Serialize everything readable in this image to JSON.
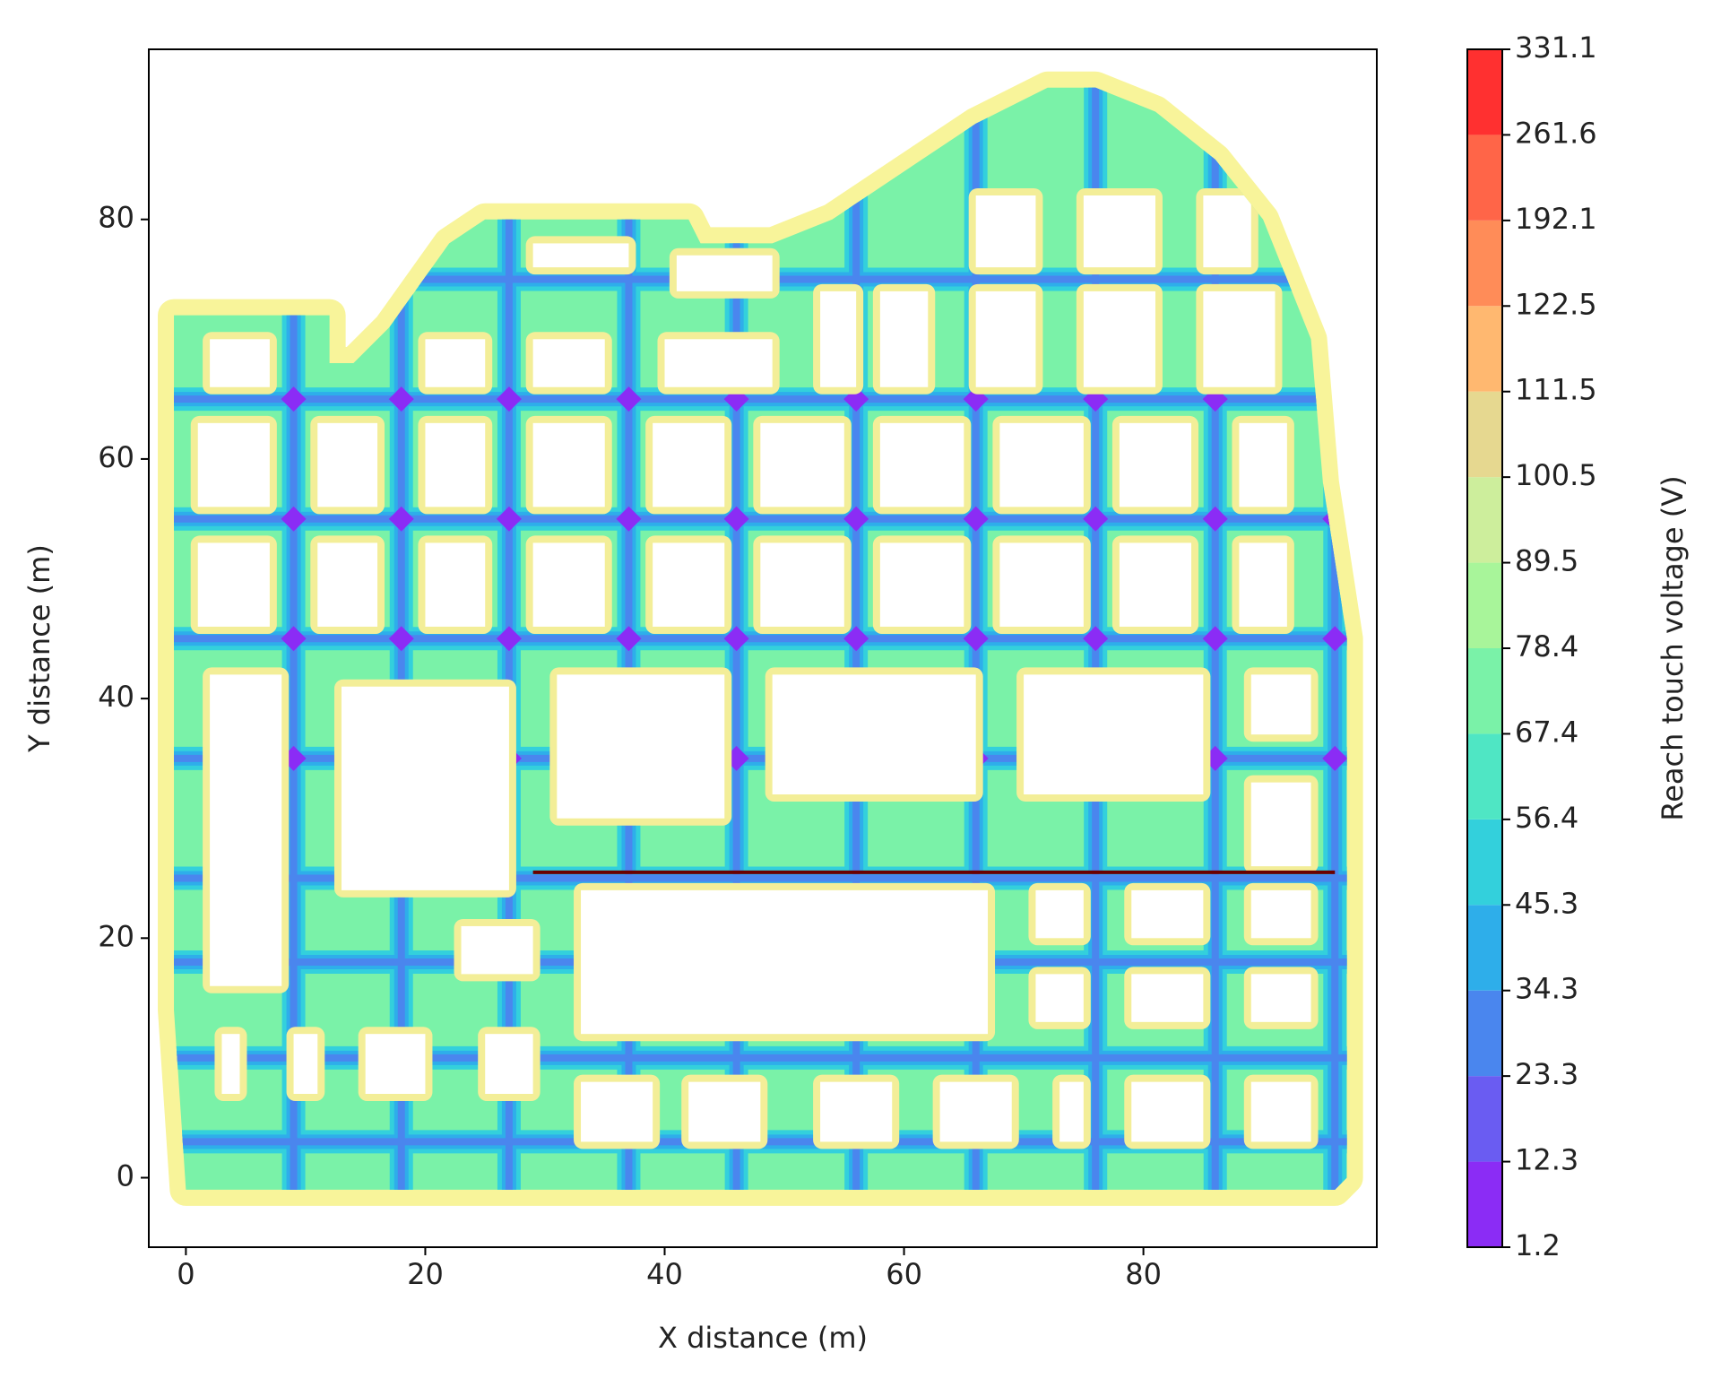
{
  "chart_data": {
    "type": "contour",
    "xlabel": "X distance (m)",
    "ylabel": "Y distance (m)",
    "xlim": [
      -3.1,
      99.5
    ],
    "ylim": [
      -5.8,
      94.2
    ],
    "xticks": [
      0,
      20,
      40,
      60,
      80
    ],
    "yticks": [
      0,
      20,
      40,
      60,
      80
    ],
    "grid": false,
    "lines": [
      {
        "x": [
          29,
          96
        ],
        "y": [
          25.5,
          25.5
        ],
        "color": "#6b0000"
      }
    ],
    "colorbar": {
      "label": "Reach touch voltage (V)",
      "levels": [
        1.2,
        12.3,
        23.3,
        34.3,
        45.3,
        56.4,
        67.4,
        78.4,
        89.5,
        100.5,
        111.5,
        122.5,
        192.1,
        261.6,
        331.1
      ],
      "colors": [
        "#8b2cf5",
        "#6a5cf2",
        "#4a86ee",
        "#2eaeea",
        "#33d0dc",
        "#4fe6c4",
        "#7af2a8",
        "#a8f59a",
        "#cdee9c",
        "#e6d890",
        "#ffb870",
        "#ff8c58",
        "#ff6548",
        "#ff3030"
      ]
    }
  }
}
